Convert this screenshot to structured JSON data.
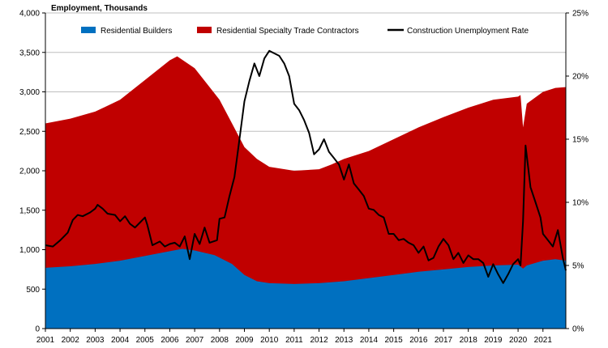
{
  "chart_data": {
    "type": "area",
    "title": "Employment, Thousands",
    "x": [
      2001,
      2002,
      2003,
      2004,
      2005,
      2006,
      2007,
      2008,
      2009,
      2010,
      2011,
      2012,
      2013,
      2014,
      2015,
      2016,
      2017,
      2018,
      2019,
      2020,
      2021
    ],
    "x_tick_labels": [
      "2001",
      "2002",
      "2003",
      "2004",
      "2005",
      "2006",
      "2007",
      "2008",
      "2009",
      "2010",
      "2011",
      "2012",
      "2013",
      "2014",
      "2015",
      "2016",
      "2017",
      "2018",
      "2019",
      "2020",
      "2021"
    ],
    "ylim_left": [
      0,
      4000
    ],
    "y_left_ticks": [
      "0",
      "500",
      "1,000",
      "1,500",
      "2,000",
      "2,500",
      "3,000",
      "3,500",
      "4,000"
    ],
    "ylim_right": [
      0,
      25
    ],
    "y_right_ticks": [
      "0%",
      "5%",
      "10%",
      "15%",
      "20%",
      "25%"
    ],
    "legend_position": "top",
    "series": [
      {
        "name": "Residential Builders",
        "kind": "area",
        "color": "#0070C0",
        "axis": "left",
        "points": [
          [
            2001,
            770
          ],
          [
            2002,
            790
          ],
          [
            2003,
            820
          ],
          [
            2004,
            860
          ],
          [
            2005,
            920
          ],
          [
            2006,
            980
          ],
          [
            2006.5,
            1010
          ],
          [
            2007,
            990
          ],
          [
            2007.8,
            930
          ],
          [
            2008.5,
            820
          ],
          [
            2009,
            680
          ],
          [
            2009.5,
            600
          ],
          [
            2010,
            575
          ],
          [
            2011,
            565
          ],
          [
            2012,
            575
          ],
          [
            2013,
            600
          ],
          [
            2014,
            640
          ],
          [
            2015,
            680
          ],
          [
            2016,
            720
          ],
          [
            2017,
            750
          ],
          [
            2018,
            780
          ],
          [
            2019,
            800
          ],
          [
            2020,
            810
          ],
          [
            2020.2,
            760
          ],
          [
            2020.35,
            800
          ],
          [
            2021,
            860
          ],
          [
            2021.5,
            880
          ],
          [
            2021.92,
            860
          ]
        ]
      },
      {
        "name": "Residential Specialty Trade Contractors",
        "kind": "area",
        "color": "#C00000",
        "axis": "left",
        "points": [
          [
            2001,
            2600
          ],
          [
            2002,
            2660
          ],
          [
            2003,
            2750
          ],
          [
            2004,
            2900
          ],
          [
            2005,
            3150
          ],
          [
            2006,
            3400
          ],
          [
            2006.3,
            3450
          ],
          [
            2007,
            3300
          ],
          [
            2007.5,
            3100
          ],
          [
            2008,
            2900
          ],
          [
            2008.5,
            2600
          ],
          [
            2009,
            2300
          ],
          [
            2009.5,
            2150
          ],
          [
            2010,
            2050
          ],
          [
            2011,
            2000
          ],
          [
            2012,
            2020
          ],
          [
            2012.5,
            2080
          ],
          [
            2013,
            2150
          ],
          [
            2014,
            2250
          ],
          [
            2015,
            2400
          ],
          [
            2016,
            2550
          ],
          [
            2017,
            2680
          ],
          [
            2018,
            2800
          ],
          [
            2019,
            2900
          ],
          [
            2020,
            2940
          ],
          [
            2020.1,
            2960
          ],
          [
            2020.2,
            2550
          ],
          [
            2020.35,
            2850
          ],
          [
            2021,
            3000
          ],
          [
            2021.5,
            3050
          ],
          [
            2021.92,
            3060
          ]
        ]
      },
      {
        "name": "Construction Unemployment Rate",
        "kind": "line",
        "color": "#000000",
        "axis": "right",
        "points": [
          [
            2001,
            6.6
          ],
          [
            2001.3,
            6.5
          ],
          [
            2001.6,
            7.0
          ],
          [
            2001.9,
            7.6
          ],
          [
            2002.1,
            8.6
          ],
          [
            2002.3,
            9.0
          ],
          [
            2002.5,
            8.9
          ],
          [
            2002.8,
            9.2
          ],
          [
            2003.0,
            9.5
          ],
          [
            2003.1,
            9.8
          ],
          [
            2003.3,
            9.5
          ],
          [
            2003.5,
            9.1
          ],
          [
            2003.8,
            9.0
          ],
          [
            2004.0,
            8.5
          ],
          [
            2004.2,
            8.9
          ],
          [
            2004.4,
            8.3
          ],
          [
            2004.6,
            8.0
          ],
          [
            2004.8,
            8.4
          ],
          [
            2005.0,
            8.8
          ],
          [
            2005.1,
            8.2
          ],
          [
            2005.3,
            6.6
          ],
          [
            2005.6,
            6.9
          ],
          [
            2005.8,
            6.5
          ],
          [
            2006.0,
            6.7
          ],
          [
            2006.2,
            6.8
          ],
          [
            2006.4,
            6.5
          ],
          [
            2006.6,
            7.3
          ],
          [
            2006.8,
            5.5
          ],
          [
            2007.0,
            7.5
          ],
          [
            2007.2,
            6.7
          ],
          [
            2007.4,
            8.0
          ],
          [
            2007.6,
            6.8
          ],
          [
            2007.9,
            7.0
          ],
          [
            2008.0,
            8.7
          ],
          [
            2008.2,
            8.8
          ],
          [
            2008.4,
            10.5
          ],
          [
            2008.6,
            12.0
          ],
          [
            2008.8,
            15.0
          ],
          [
            2009.0,
            18.0
          ],
          [
            2009.2,
            19.6
          ],
          [
            2009.4,
            21.0
          ],
          [
            2009.6,
            20.0
          ],
          [
            2009.8,
            21.4
          ],
          [
            2010.0,
            22.0
          ],
          [
            2010.2,
            21.8
          ],
          [
            2010.4,
            21.6
          ],
          [
            2010.6,
            21.0
          ],
          [
            2010.8,
            20.0
          ],
          [
            2011.0,
            17.8
          ],
          [
            2011.2,
            17.3
          ],
          [
            2011.4,
            16.5
          ],
          [
            2011.6,
            15.5
          ],
          [
            2011.8,
            13.8
          ],
          [
            2012.0,
            14.2
          ],
          [
            2012.2,
            15.0
          ],
          [
            2012.4,
            14.0
          ],
          [
            2012.6,
            13.5
          ],
          [
            2012.8,
            13.0
          ],
          [
            2013.0,
            11.8
          ],
          [
            2013.2,
            13.0
          ],
          [
            2013.4,
            11.5
          ],
          [
            2013.6,
            11.0
          ],
          [
            2013.8,
            10.5
          ],
          [
            2014.0,
            9.5
          ],
          [
            2014.2,
            9.4
          ],
          [
            2014.4,
            9.0
          ],
          [
            2014.6,
            8.8
          ],
          [
            2014.8,
            7.5
          ],
          [
            2015.0,
            7.5
          ],
          [
            2015.2,
            7.0
          ],
          [
            2015.4,
            7.1
          ],
          [
            2015.6,
            6.8
          ],
          [
            2015.8,
            6.6
          ],
          [
            2016.0,
            6.0
          ],
          [
            2016.2,
            6.5
          ],
          [
            2016.4,
            5.4
          ],
          [
            2016.6,
            5.6
          ],
          [
            2016.8,
            6.5
          ],
          [
            2017.0,
            7.1
          ],
          [
            2017.2,
            6.6
          ],
          [
            2017.4,
            5.5
          ],
          [
            2017.6,
            6.0
          ],
          [
            2017.8,
            5.2
          ],
          [
            2018.0,
            5.8
          ],
          [
            2018.2,
            5.5
          ],
          [
            2018.4,
            5.5
          ],
          [
            2018.6,
            5.2
          ],
          [
            2018.8,
            4.1
          ],
          [
            2019.0,
            5.1
          ],
          [
            2019.2,
            4.3
          ],
          [
            2019.4,
            3.6
          ],
          [
            2019.6,
            4.3
          ],
          [
            2019.8,
            5.1
          ],
          [
            2020.0,
            5.5
          ],
          [
            2020.1,
            5.0
          ],
          [
            2020.2,
            8.5
          ],
          [
            2020.3,
            14.5
          ],
          [
            2020.5,
            11.2
          ],
          [
            2020.7,
            10.0
          ],
          [
            2020.9,
            8.8
          ],
          [
            2021.0,
            7.5
          ],
          [
            2021.2,
            7.0
          ],
          [
            2021.4,
            6.5
          ],
          [
            2021.6,
            7.8
          ],
          [
            2021.8,
            5.6
          ],
          [
            2021.92,
            4.6
          ]
        ]
      }
    ],
    "gridlines": "horizontal-left-axis"
  }
}
